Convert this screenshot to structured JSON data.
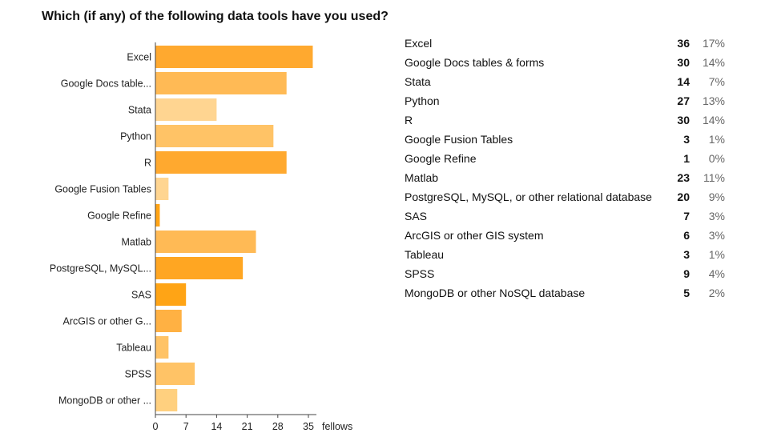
{
  "title": "Which (if any) of the following data tools have you used?",
  "colors": {
    "bars": [
      "#FFA92F",
      "#FFBA55",
      "#FFD591",
      "#FFC366",
      "#FFA92F",
      "#FFD591",
      "#FFA415",
      "#FFBA55",
      "#FFA622",
      "#FFA415",
      "#FFB143",
      "#FFC366",
      "#FFC366",
      "#FFD07F"
    ]
  },
  "chart_data": {
    "type": "bar",
    "orientation": "horizontal",
    "categories": [
      "Excel",
      "Google Docs table...",
      "Stata",
      "Python",
      "R",
      "Google Fusion Tables",
      "Google Refine",
      "Matlab",
      "PostgreSQL, MySQL...",
      "SAS",
      "ArcGIS or other G...",
      "Tableau",
      "SPSS",
      "MongoDB or other ..."
    ],
    "values": [
      36,
      30,
      14,
      27,
      30,
      3,
      1,
      23,
      20,
      7,
      6,
      3,
      9,
      5
    ],
    "xticks": [
      0,
      7,
      14,
      21,
      28,
      35
    ],
    "xlim": [
      0,
      38
    ],
    "xunit": "fellows",
    "grid": false
  },
  "summary": {
    "rows": [
      {
        "name": "Excel",
        "count": "36",
        "pct": "17%"
      },
      {
        "name": "Google Docs tables & forms",
        "count": "30",
        "pct": "14%"
      },
      {
        "name": "Stata",
        "count": "14",
        "pct": "7%"
      },
      {
        "name": "Python",
        "count": "27",
        "pct": "13%"
      },
      {
        "name": "R",
        "count": "30",
        "pct": "14%"
      },
      {
        "name": "Google Fusion Tables",
        "count": "3",
        "pct": "1%"
      },
      {
        "name": "Google Refine",
        "count": "1",
        "pct": "0%"
      },
      {
        "name": "Matlab",
        "count": "23",
        "pct": "11%"
      },
      {
        "name": "PostgreSQL, MySQL, or other relational database",
        "count": "20",
        "pct": "9%"
      },
      {
        "name": "SAS",
        "count": "7",
        "pct": "3%"
      },
      {
        "name": "ArcGIS or other GIS system",
        "count": "6",
        "pct": "3%"
      },
      {
        "name": "Tableau",
        "count": "3",
        "pct": "1%"
      },
      {
        "name": "SPSS",
        "count": "9",
        "pct": "4%"
      },
      {
        "name": "MongoDB or other NoSQL database",
        "count": "5",
        "pct": "2%"
      }
    ]
  }
}
